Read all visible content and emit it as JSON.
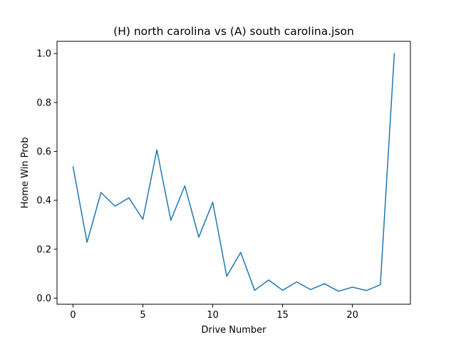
{
  "chart_data": {
    "type": "line",
    "title": "(H) north carolina vs (A) south carolina.json",
    "xlabel": "Drive Number",
    "ylabel": "Home Win Prob",
    "xlim": [
      -1.15,
      24.15
    ],
    "ylim": [
      -0.025,
      1.05
    ],
    "xticks": [
      0,
      5,
      10,
      15,
      20
    ],
    "xtick_labels": [
      "0",
      "5",
      "10",
      "15",
      "20"
    ],
    "yticks": [
      0.0,
      0.2,
      0.4,
      0.6,
      0.8,
      1.0
    ],
    "ytick_labels": [
      "0.0",
      "0.2",
      "0.4",
      "0.6",
      "0.8",
      "1.0"
    ],
    "grid": false,
    "line_color": "#1f77b4",
    "x": [
      0,
      1,
      2,
      3,
      4,
      5,
      6,
      7,
      8,
      9,
      10,
      11,
      12,
      13,
      14,
      15,
      16,
      17,
      18,
      19,
      20,
      21,
      22,
      23
    ],
    "series": [
      {
        "values": [
          0.537,
          0.228,
          0.432,
          0.376,
          0.41,
          0.322,
          0.606,
          0.318,
          0.459,
          0.249,
          0.392,
          0.089,
          0.187,
          0.032,
          0.074,
          0.032,
          0.066,
          0.035,
          0.059,
          0.028,
          0.045,
          0.031,
          0.055,
          1.0
        ]
      }
    ]
  }
}
